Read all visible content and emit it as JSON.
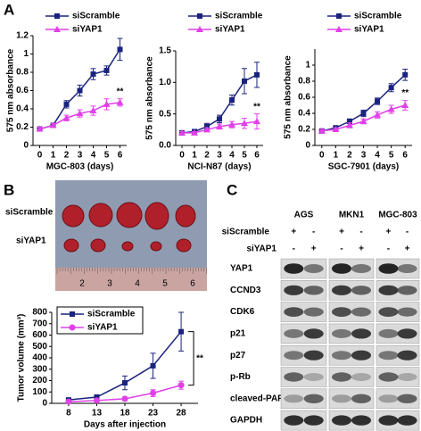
{
  "panel_labels": [
    "A",
    "B",
    "C"
  ],
  "chart_data": [
    {
      "type": "line",
      "xlabel": "MGC-803 (days)",
      "ylabel": "575 nm absorbance",
      "x": [
        0,
        1,
        2,
        3,
        4,
        5,
        6
      ],
      "xlim": [
        -0.5,
        6.5
      ],
      "xticks": [
        0,
        1,
        2,
        3,
        4,
        5,
        6
      ],
      "ylim": [
        0,
        1.2
      ],
      "yticks": [
        0,
        0.2,
        0.4,
        0.6,
        0.8,
        1,
        1.2
      ],
      "legend": "top",
      "annotation": "**",
      "series": [
        {
          "name": "siScramble",
          "color": "#1a237e",
          "marker": "square",
          "values": [
            0.18,
            0.22,
            0.45,
            0.6,
            0.78,
            0.82,
            1.05
          ],
          "errors": [
            0.02,
            0.02,
            0.04,
            0.06,
            0.06,
            0.05,
            0.12
          ]
        },
        {
          "name": "siYAP1",
          "color": "#e040e8",
          "marker": "triangle",
          "values": [
            0.18,
            0.22,
            0.3,
            0.35,
            0.38,
            0.45,
            0.47
          ],
          "errors": [
            0.02,
            0.02,
            0.03,
            0.04,
            0.05,
            0.06,
            0.04
          ]
        }
      ]
    },
    {
      "type": "line",
      "xlabel": "NCI-N87 (days)",
      "ylabel": "575 nm absorbance",
      "x": [
        0,
        1,
        2,
        3,
        4,
        5,
        6
      ],
      "xlim": [
        -0.5,
        6.5
      ],
      "xticks": [
        0,
        1,
        2,
        3,
        4,
        5,
        6
      ],
      "ylim": [
        0,
        1.5
      ],
      "yticks": [
        {
          "value": 0,
          "label": "0.0"
        },
        {
          "value": 0.5,
          "label": "0.5"
        },
        {
          "value": 1,
          "label": "1.0"
        },
        {
          "value": 1.5,
          "label": "1.5"
        }
      ],
      "legend": "top",
      "annotation": "**",
      "series": [
        {
          "name": "siScramble",
          "color": "#1a237e",
          "marker": "square",
          "values": [
            0.2,
            0.22,
            0.3,
            0.42,
            0.72,
            1.02,
            1.12
          ],
          "errors": [
            0.02,
            0.03,
            0.05,
            0.06,
            0.08,
            0.2,
            0.2
          ]
        },
        {
          "name": "siYAP1",
          "color": "#e040e8",
          "marker": "triangle",
          "values": [
            0.2,
            0.2,
            0.25,
            0.3,
            0.33,
            0.35,
            0.38
          ],
          "errors": [
            0.02,
            0.02,
            0.03,
            0.04,
            0.05,
            0.08,
            0.12
          ]
        }
      ]
    },
    {
      "type": "line",
      "xlabel": "SGC-7901 (days)",
      "ylabel": "575 nm absorbance",
      "x": [
        0,
        1,
        2,
        3,
        4,
        5,
        6
      ],
      "xlim": [
        -0.5,
        6.5
      ],
      "xticks": [
        0,
        1,
        2,
        3,
        4,
        5,
        6
      ],
      "ylim": [
        0,
        1.2
      ],
      "yticks": [
        0,
        0.2,
        0.4,
        0.6,
        0.8,
        1
      ],
      "legend": "top",
      "annotation": "**",
      "series": [
        {
          "name": "siScramble",
          "color": "#1a237e",
          "marker": "square",
          "values": [
            0.18,
            0.22,
            0.3,
            0.4,
            0.55,
            0.72,
            0.88
          ],
          "errors": [
            0.02,
            0.02,
            0.03,
            0.04,
            0.04,
            0.05,
            0.07
          ]
        },
        {
          "name": "siYAP1",
          "color": "#e040e8",
          "marker": "triangle",
          "values": [
            0.18,
            0.2,
            0.25,
            0.3,
            0.38,
            0.45,
            0.5
          ],
          "errors": [
            0.02,
            0.02,
            0.03,
            0.03,
            0.04,
            0.05,
            0.06
          ]
        }
      ]
    },
    {
      "type": "line",
      "xlabel": "Days after injection",
      "ylabel": "Tumor volume (mm³)",
      "x": [
        8,
        13,
        18,
        23,
        28
      ],
      "xlim": [
        5,
        31
      ],
      "xticks": [
        8,
        13,
        18,
        23,
        28
      ],
      "ylim": [
        0,
        800
      ],
      "yticks": [
        0,
        100,
        200,
        300,
        400,
        500,
        600,
        700,
        800
      ],
      "legend": "top-left",
      "annotation": "**",
      "series": [
        {
          "name": "siScramble",
          "color": "#1a237e",
          "marker": "square",
          "values": [
            30,
            55,
            180,
            330,
            630
          ],
          "errors": [
            15,
            20,
            60,
            110,
            170
          ]
        },
        {
          "name": "siYAP1",
          "color": "#e040e8",
          "marker": "circle",
          "values": [
            15,
            25,
            40,
            90,
            160
          ],
          "errors": [
            8,
            10,
            15,
            30,
            35
          ]
        }
      ]
    }
  ],
  "photo": {
    "rows": [
      "siScramble",
      "siYAP1"
    ],
    "ruler": [
      "2",
      "3",
      "4",
      "5",
      "6"
    ]
  },
  "blot": {
    "columns": [
      "AGS",
      "MKN1",
      "MGC-803"
    ],
    "conditions": [
      {
        "label": "siScramble",
        "signs": [
          "+",
          "-",
          "+",
          "-",
          "+",
          "-"
        ]
      },
      {
        "label": "siYAP1",
        "signs": [
          "-",
          "+",
          "-",
          "+",
          "-",
          "+"
        ]
      }
    ],
    "proteins": [
      "YAP1",
      "CCND3",
      "CDK6",
      "p21",
      "p27",
      "p-Rb",
      "cleaved-PARP",
      "GAPDH"
    ]
  }
}
